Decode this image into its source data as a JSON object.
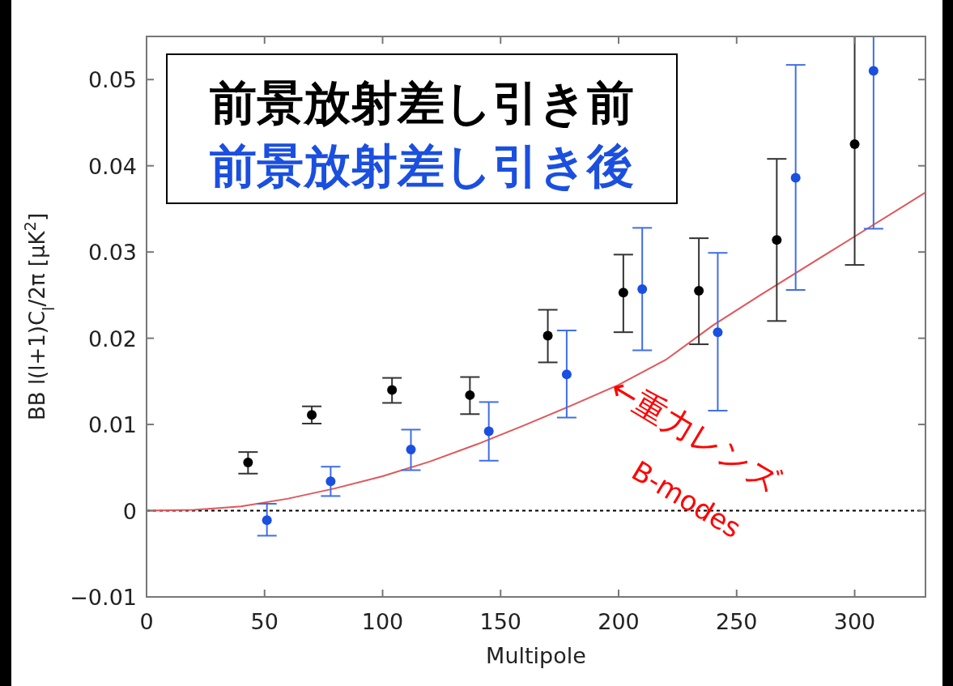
{
  "chart_data": {
    "type": "scatter",
    "xlabel": "Multipole",
    "ylabel": "BB l(l+1)C$_{l}$/2π [μK$^{2}$]",
    "xlim": [
      0,
      330
    ],
    "ylim": [
      -0.01,
      0.055
    ],
    "xticks": [
      0,
      50,
      100,
      150,
      200,
      250,
      300
    ],
    "yticks": [
      {
        "value": -0.01,
        "label": "−0.01"
      },
      0,
      0.01,
      0.02,
      0.03,
      0.04,
      0.05
    ],
    "marker": "circle",
    "legend": "top left",
    "grid": false,
    "ref_lines": [
      {
        "axis": "y",
        "value": 0,
        "color": "#000000",
        "line_style": "dotted"
      }
    ],
    "annotations": [
      "←重力レンズ",
      "B-modes"
    ],
    "series": [
      {
        "name": "前景放射差し引き前",
        "color": "#000000",
        "x": [
          43,
          70,
          104,
          137,
          170,
          202,
          234,
          267,
          300
        ],
        "values": [
          0.0056,
          0.0111,
          0.014,
          0.0134,
          0.0203,
          0.0253,
          0.0255,
          0.0314,
          0.0425
        ],
        "errors": [
          [
            0.0043,
            0.0068
          ],
          [
            0.0101,
            0.0121
          ],
          [
            0.0125,
            0.0154
          ],
          [
            0.0112,
            0.0155
          ],
          [
            0.0172,
            0.0233
          ],
          [
            0.0207,
            0.0297
          ],
          [
            0.0193,
            0.0316
          ],
          [
            0.022,
            0.0408
          ],
          [
            0.0285,
            0.055
          ]
        ]
      },
      {
        "name": "前景放射差し引き後",
        "color": "#1a4fe0",
        "x": [
          51,
          78,
          112,
          145,
          178,
          210,
          242,
          275,
          308
        ],
        "values": [
          -0.0011,
          0.0034,
          0.0071,
          0.0092,
          0.0158,
          0.0257,
          0.0207,
          0.0386,
          0.051
        ],
        "errors": [
          [
            -0.0029,
            0.0008
          ],
          [
            0.0017,
            0.0051
          ],
          [
            0.0047,
            0.0094
          ],
          [
            0.0058,
            0.0126
          ],
          [
            0.0108,
            0.0209
          ],
          [
            0.0186,
            0.0328
          ],
          [
            0.0116,
            0.0299
          ],
          [
            0.0256,
            0.0517
          ],
          [
            0.0327,
            0.055
          ]
        ]
      },
      {
        "type": "line",
        "color": "#e0565a",
        "marker": "none",
        "x": [
          0,
          20,
          40,
          60,
          80,
          100,
          120,
          140,
          160,
          180,
          200,
          220,
          240,
          260,
          280,
          300,
          330
        ],
        "values": [
          0,
          0.0001,
          0.0005,
          0.0014,
          0.0026,
          0.004,
          0.0057,
          0.0077,
          0.0099,
          0.0122,
          0.0146,
          0.0175,
          0.0215,
          0.025,
          0.0284,
          0.0318,
          0.0369
        ]
      }
    ]
  }
}
